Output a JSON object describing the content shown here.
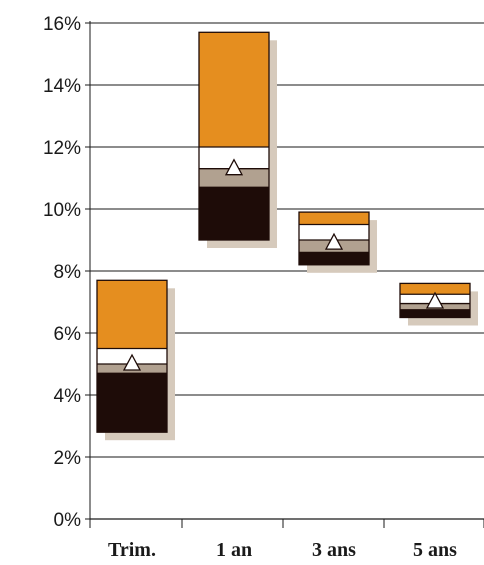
{
  "chart_data": {
    "type": "bar",
    "categories": [
      "Trim.",
      "1 an",
      "3 ans",
      "5 ans"
    ],
    "y_ticks": [
      "0%",
      "2%",
      "4%",
      "6%",
      "8%",
      "10%",
      "12%",
      "14%",
      "16%"
    ],
    "ylim": [
      0,
      16
    ],
    "grid": true,
    "y_unit": "%",
    "segments_order": [
      "dark",
      "taupe",
      "white",
      "orange"
    ],
    "boxes": [
      {
        "category": "Trim.",
        "bottom": 2.8,
        "dark_top": 4.7,
        "taupe_top": 5.0,
        "white_top": 5.5,
        "top": 7.7,
        "marker": 5.0
      },
      {
        "category": "1 an",
        "bottom": 9.0,
        "dark_top": 10.7,
        "taupe_top": 11.3,
        "white_top": 12.0,
        "top": 15.7,
        "marker": 11.3
      },
      {
        "category": "3 ans",
        "bottom": 8.2,
        "dark_top": 8.6,
        "taupe_top": 9.0,
        "white_top": 9.5,
        "top": 9.9,
        "marker": 8.9
      },
      {
        "category": "5 ans",
        "bottom": 6.5,
        "dark_top": 6.75,
        "taupe_top": 6.95,
        "white_top": 7.25,
        "top": 7.6,
        "marker": 7.0
      }
    ],
    "colors": {
      "dark": "#1e0c08",
      "taupe": "#b1a190",
      "white": "#ffffff",
      "orange": "#e58e1f",
      "shadow": "#d6cabc",
      "grid": "#1a1a1a"
    }
  }
}
